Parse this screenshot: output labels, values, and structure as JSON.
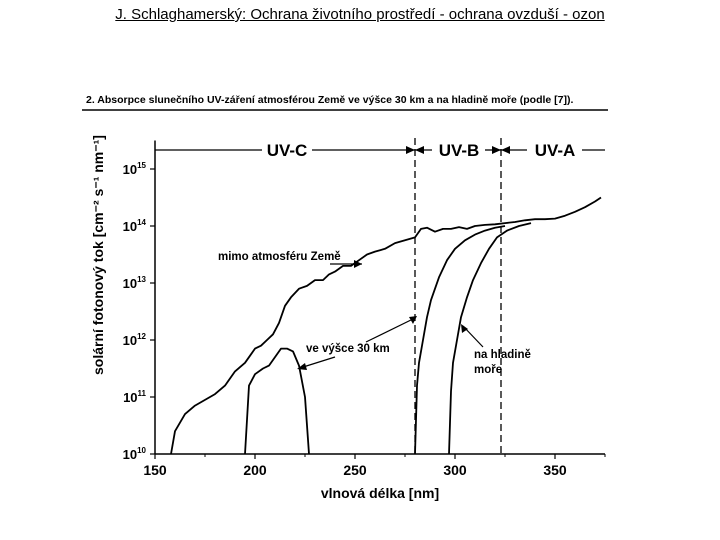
{
  "header": {
    "text": "J. Schlaghamerský: Ochrana životního prostředí - ochrana ovzduší - ozon"
  },
  "chart_data": {
    "type": "line",
    "title": "2. Absorpce slunečního UV-záření atmosférou Země ve výšce 30 km  a na hladině moře (podle [7]).",
    "xlabel": "vlnová délka [nm]",
    "ylabel": "solární fotonový tok [cm⁻² s⁻¹ nm⁻¹]",
    "xlim": [
      150,
      375
    ],
    "ylim": [
      10,
      15.5
    ],
    "y_scale": "log",
    "x_ticks": [
      150,
      200,
      250,
      300,
      350
    ],
    "y_ticks": [
      {
        "value": 10,
        "base": "10",
        "exp": "10"
      },
      {
        "value": 11,
        "base": "10",
        "exp": "11"
      },
      {
        "value": 12,
        "base": "10",
        "exp": "12"
      },
      {
        "value": 13,
        "base": "10",
        "exp": "13"
      },
      {
        "value": 14,
        "base": "10",
        "exp": "14"
      },
      {
        "value": 15,
        "base": "10",
        "exp": "15"
      }
    ],
    "bands": [
      {
        "label": "UV-C",
        "from": 150,
        "to": 280
      },
      {
        "label": "UV-B",
        "from": 280,
        "to": 323
      },
      {
        "label": "UV-A",
        "from": 323,
        "to": 375
      }
    ],
    "band_dividers": [
      280,
      323
    ],
    "annotations": [
      {
        "text": "mimo atmosféru Země"
      },
      {
        "text": "ve výšce 30 km"
      },
      {
        "text": "na hladině",
        "text2": "moře"
      }
    ],
    "series": [
      {
        "points": [
          [
            158,
            10.0
          ],
          [
            160,
            10.4
          ],
          [
            165,
            10.7
          ],
          [
            170,
            10.85
          ],
          [
            175,
            10.95
          ],
          [
            180,
            11.05
          ],
          [
            185,
            11.2
          ],
          [
            190,
            11.45
          ],
          [
            195,
            11.6
          ],
          [
            198,
            11.75
          ],
          [
            200,
            11.85
          ],
          [
            203,
            11.9
          ],
          [
            206,
            12.0
          ],
          [
            209,
            12.1
          ],
          [
            212,
            12.3
          ],
          [
            215,
            12.6
          ],
          [
            218,
            12.75
          ],
          [
            222,
            12.9
          ],
          [
            226,
            12.95
          ],
          [
            230,
            13.05
          ],
          [
            234,
            13.05
          ],
          [
            237,
            13.15
          ],
          [
            240,
            13.2
          ],
          [
            244,
            13.3
          ],
          [
            248,
            13.3
          ],
          [
            252,
            13.4
          ],
          [
            256,
            13.5
          ],
          [
            260,
            13.55
          ],
          [
            265,
            13.6
          ],
          [
            270,
            13.7
          ],
          [
            275,
            13.75
          ],
          [
            280,
            13.8
          ],
          [
            283,
            13.95
          ],
          [
            286,
            13.97
          ],
          [
            290,
            13.9
          ],
          [
            294,
            13.95
          ],
          [
            298,
            13.95
          ],
          [
            302,
            13.98
          ],
          [
            306,
            13.95
          ],
          [
            310,
            14.0
          ],
          [
            315,
            14.02
          ],
          [
            320,
            14.03
          ],
          [
            325,
            14.05
          ],
          [
            330,
            14.07
          ],
          [
            335,
            14.1
          ],
          [
            340,
            14.12
          ],
          [
            345,
            14.12
          ],
          [
            350,
            14.13
          ],
          [
            355,
            14.18
          ],
          [
            360,
            14.25
          ],
          [
            365,
            14.33
          ],
          [
            370,
            14.43
          ],
          [
            373,
            14.5
          ]
        ]
      },
      {
        "points": [
          [
            195,
            10.0
          ],
          [
            197,
            11.2
          ],
          [
            200,
            11.4
          ],
          [
            204,
            11.5
          ],
          [
            207,
            11.55
          ],
          [
            210,
            11.7
          ],
          [
            213,
            11.85
          ],
          [
            216,
            11.85
          ],
          [
            219,
            11.8
          ],
          [
            222,
            11.55
          ],
          [
            225,
            11.0
          ],
          [
            226,
            10.5
          ],
          [
            227,
            10.0
          ]
        ]
      },
      {
        "points": [
          [
            280,
            10.0
          ],
          [
            281,
            11.2
          ],
          [
            282,
            11.6
          ],
          [
            284,
            12.0
          ],
          [
            286,
            12.4
          ],
          [
            288,
            12.7
          ],
          [
            292,
            13.1
          ],
          [
            296,
            13.4
          ],
          [
            300,
            13.6
          ],
          [
            305,
            13.75
          ],
          [
            310,
            13.85
          ],
          [
            315,
            13.92
          ],
          [
            320,
            13.97
          ],
          [
            325,
            14.0
          ]
        ]
      },
      {
        "points": [
          [
            297,
            10.0
          ],
          [
            298,
            11.1
          ],
          [
            299,
            11.6
          ],
          [
            301,
            12.0
          ],
          [
            303,
            12.4
          ],
          [
            306,
            12.75
          ],
          [
            309,
            13.05
          ],
          [
            313,
            13.35
          ],
          [
            317,
            13.6
          ],
          [
            321,
            13.8
          ],
          [
            326,
            13.92
          ],
          [
            332,
            14.0
          ],
          [
            338,
            14.05
          ]
        ]
      }
    ]
  }
}
